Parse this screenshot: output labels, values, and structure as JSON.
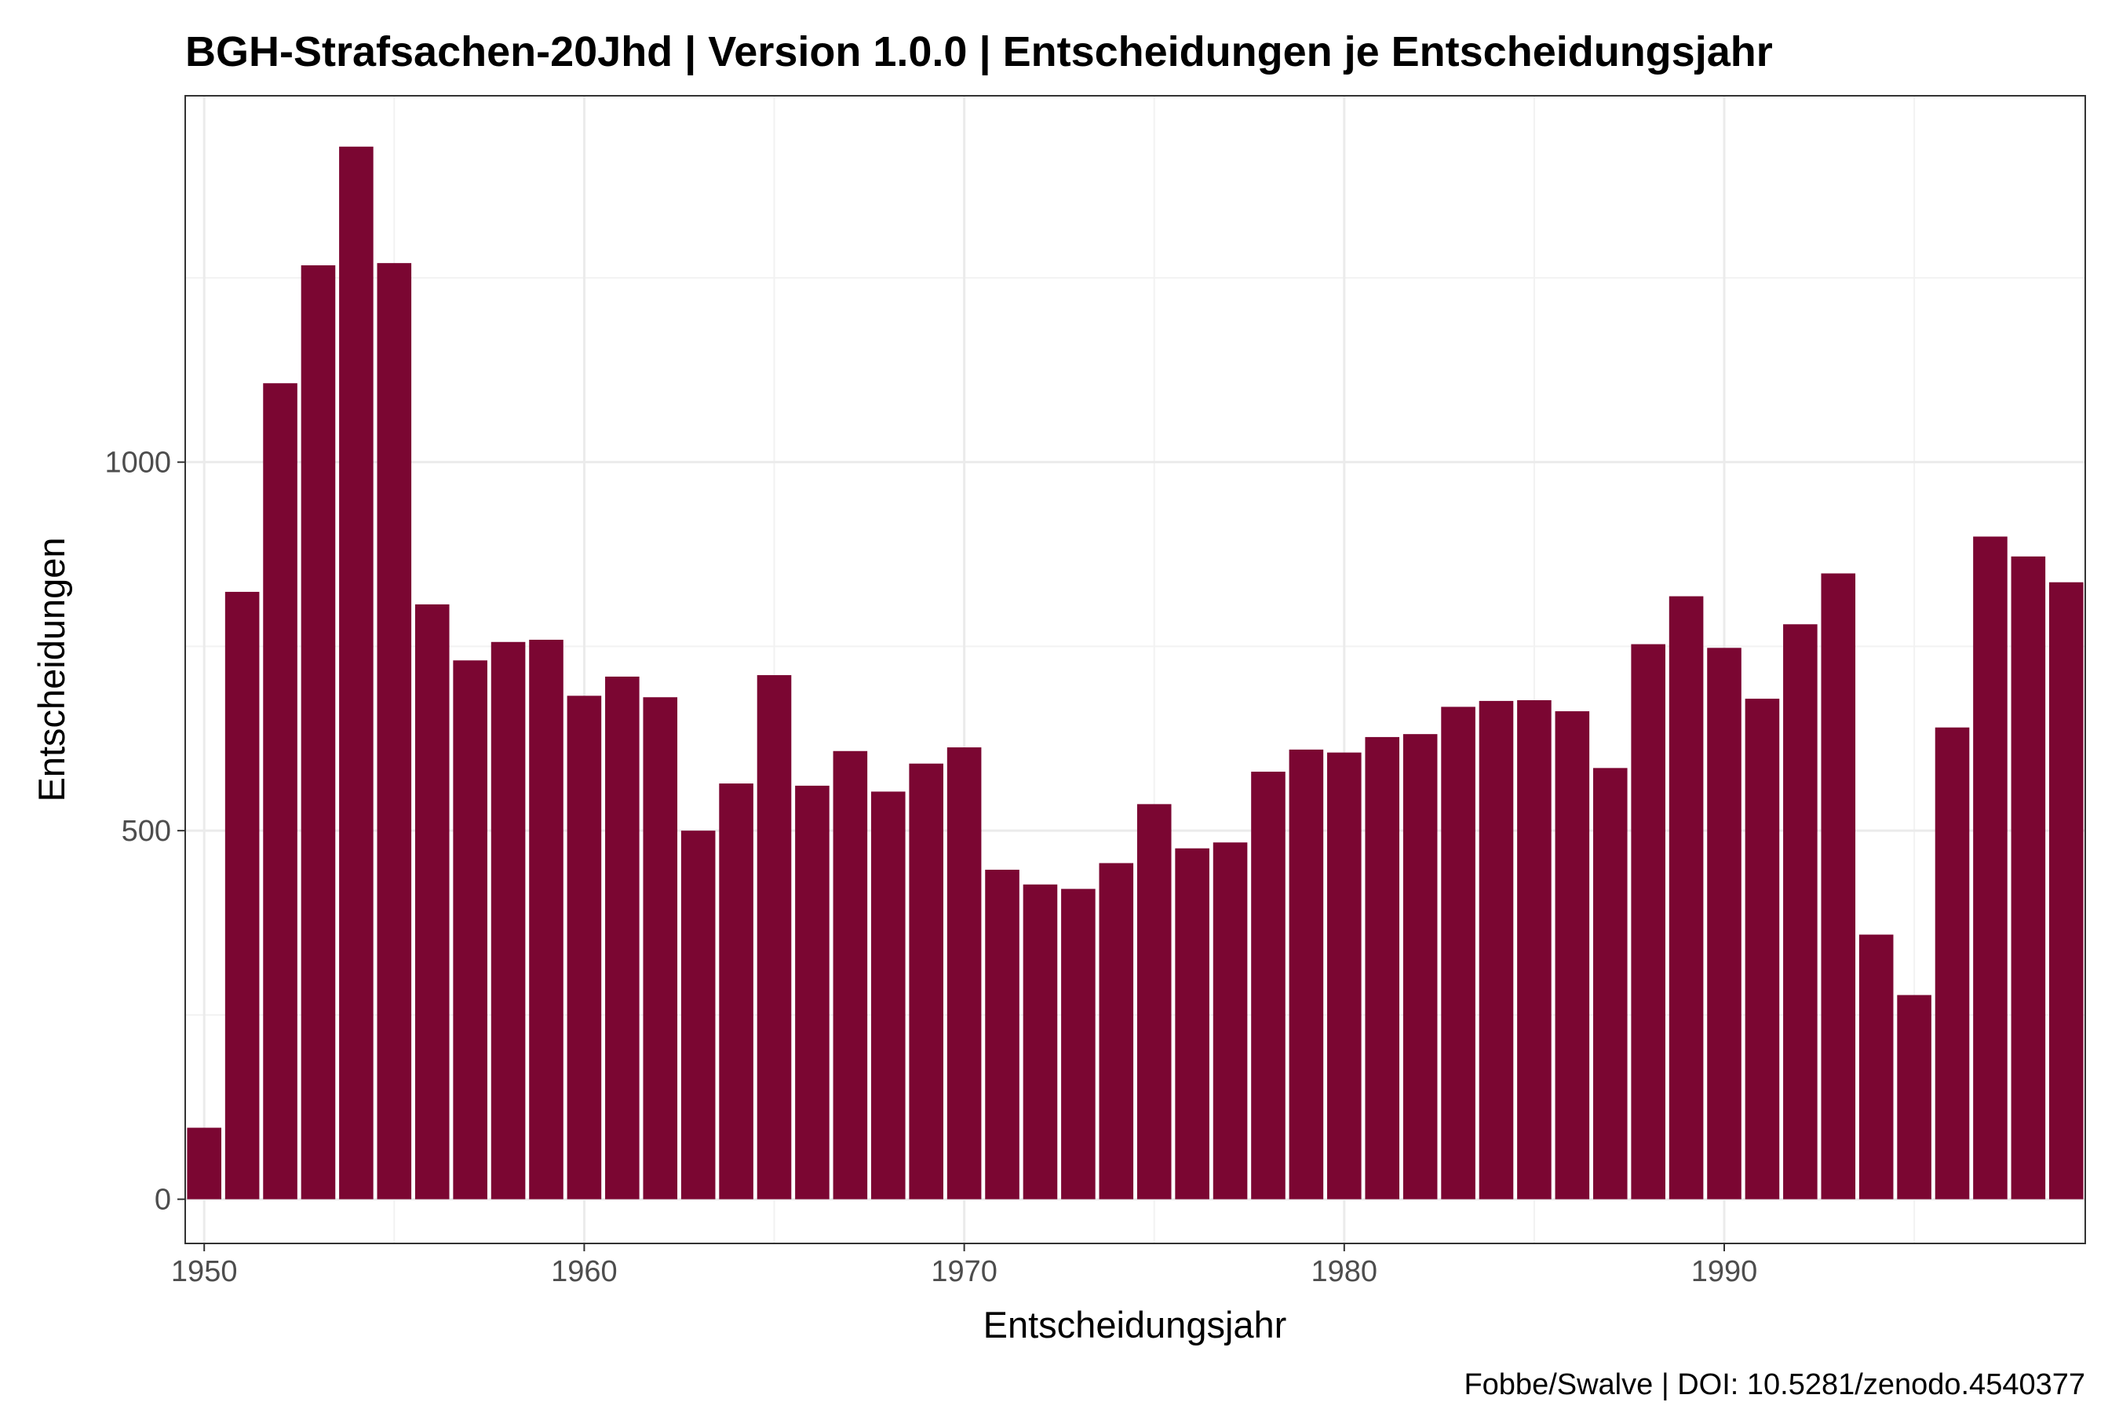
{
  "chart_data": {
    "type": "bar",
    "title": "BGH-Strafsachen-20Jhd | Version 1.0.0 | Entscheidungen je Entscheidungsjahr",
    "xlabel": "Entscheidungsjahr",
    "ylabel": "Entscheidungen",
    "caption": "Fobbe/Swalve | DOI: 10.5281/zenodo.4540377",
    "bar_color": "#7b0632",
    "grid": true,
    "x": [
      1950,
      1951,
      1952,
      1953,
      1954,
      1955,
      1956,
      1957,
      1958,
      1959,
      1960,
      1961,
      1962,
      1963,
      1964,
      1965,
      1966,
      1967,
      1968,
      1969,
      1970,
      1971,
      1972,
      1973,
      1974,
      1975,
      1976,
      1977,
      1978,
      1979,
      1980,
      1981,
      1982,
      1983,
      1984,
      1985,
      1986,
      1987,
      1988,
      1989,
      1990,
      1991,
      1992,
      1993,
      1994,
      1995,
      1996,
      1997,
      1998,
      1999
    ],
    "values": [
      97,
      824,
      1107,
      1267,
      1428,
      1270,
      807,
      731,
      756,
      759,
      683,
      709,
      681,
      500,
      564,
      711,
      561,
      608,
      553,
      591,
      613,
      447,
      427,
      421,
      456,
      536,
      476,
      484,
      580,
      610,
      606,
      627,
      631,
      668,
      676,
      677,
      662,
      585,
      753,
      818,
      748,
      679,
      780,
      849,
      359,
      277,
      640,
      899,
      872,
      837
    ],
    "xlim": [
      1949.5,
      1999.5
    ],
    "ylim": [
      -60,
      1497
    ],
    "x_ticks": [
      1950,
      1960,
      1970,
      1980,
      1990
    ],
    "y_ticks": [
      0,
      500,
      1000
    ]
  }
}
